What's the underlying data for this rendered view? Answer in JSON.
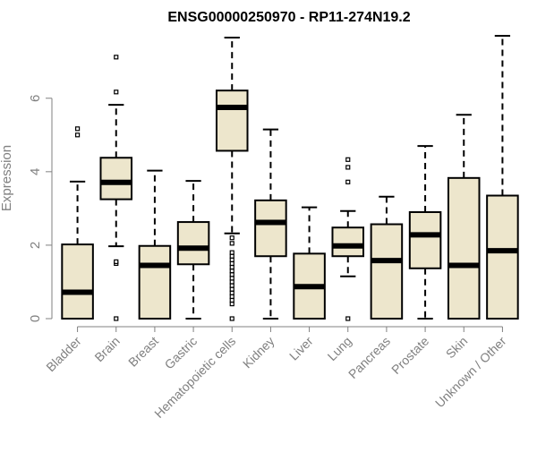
{
  "chart_data": {
    "type": "box",
    "title": "ENSG00000250970 - RP11-274N19.2",
    "xlabel": "",
    "ylabel": "Expression",
    "ylim": [
      0,
      7.7
    ],
    "yticks": [
      0,
      2,
      4,
      6
    ],
    "grid": false,
    "legend": "none",
    "colors": {
      "box_fill": "#ede6cc",
      "box_stroke": "#000000",
      "axis": "#808080",
      "tick_label": "#808080",
      "title": "#000000"
    },
    "categories": [
      "Bladder",
      "Brain",
      "Breast",
      "Gastric",
      "Hematopoietic cells",
      "Kidney",
      "Liver",
      "Lung",
      "Pancreas",
      "Prostate",
      "Skin",
      "Unknown / Other"
    ],
    "boxes": [
      {
        "min": 0,
        "q1": 0,
        "median": 0.72,
        "q3": 2.02,
        "max": 3.73,
        "outliers": [
          5.0,
          5.17
        ]
      },
      {
        "min": 1.97,
        "q1": 3.25,
        "median": 3.71,
        "q3": 4.38,
        "max": 5.82,
        "outliers": [
          0.0,
          1.5,
          1.55,
          6.17,
          7.12
        ]
      },
      {
        "min": 0,
        "q1": 0,
        "median": 1.45,
        "q3": 1.98,
        "max": 4.03,
        "outliers": []
      },
      {
        "min": 0,
        "q1": 1.48,
        "median": 1.92,
        "q3": 2.63,
        "max": 3.75,
        "outliers": []
      },
      {
        "min": 2.32,
        "q1": 4.57,
        "median": 5.75,
        "q3": 6.21,
        "max": 7.65,
        "outliers": [
          0.0,
          0.4,
          0.5,
          0.6,
          0.7,
          0.8,
          0.9,
          1.0,
          1.1,
          1.2,
          1.3,
          1.4,
          1.5,
          1.6,
          1.7,
          1.8,
          2.05,
          2.2
        ]
      },
      {
        "min": 0,
        "q1": 1.7,
        "median": 2.62,
        "q3": 3.22,
        "max": 5.15,
        "outliers": []
      },
      {
        "min": 0,
        "q1": 0,
        "median": 0.87,
        "q3": 1.77,
        "max": 3.03,
        "outliers": []
      },
      {
        "min": 1.15,
        "q1": 1.7,
        "median": 1.98,
        "q3": 2.48,
        "max": 2.93,
        "outliers": [
          0.0,
          3.72,
          4.12,
          4.33
        ]
      },
      {
        "min": 0,
        "q1": 0,
        "median": 1.58,
        "q3": 2.57,
        "max": 3.32,
        "outliers": []
      },
      {
        "min": 0,
        "q1": 1.37,
        "median": 2.28,
        "q3": 2.9,
        "max": 4.7,
        "outliers": []
      },
      {
        "min": 0,
        "q1": 0,
        "median": 1.45,
        "q3": 3.83,
        "max": 5.55,
        "outliers": []
      },
      {
        "min": 0,
        "q1": 0,
        "median": 1.85,
        "q3": 3.35,
        "max": 7.7,
        "outliers": []
      }
    ]
  }
}
